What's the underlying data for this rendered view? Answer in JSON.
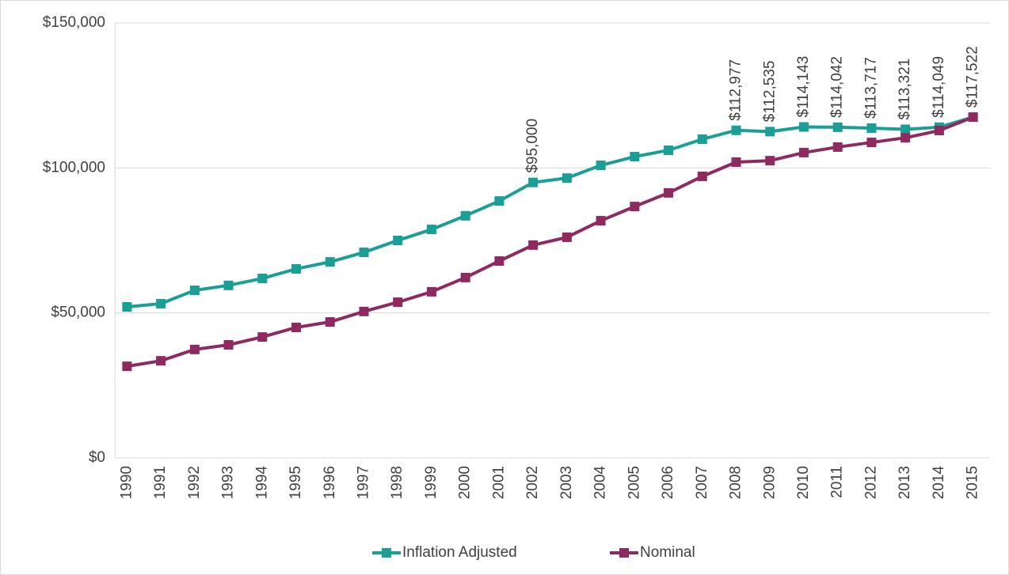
{
  "chart_data": {
    "type": "line",
    "categories": [
      "1990",
      "1991",
      "1992",
      "1993",
      "1994",
      "1995",
      "1996",
      "1997",
      "1998",
      "1999",
      "2000",
      "2001",
      "2002",
      "2003",
      "2004",
      "2005",
      "2006",
      "2007",
      "2008",
      "2009",
      "2010",
      "2011",
      "2012",
      "2013",
      "2014",
      "2015"
    ],
    "series": [
      {
        "name": "Inflation Adjusted",
        "color": "#1a9e96",
        "values": [
          52100,
          53200,
          57800,
          59500,
          61900,
          65200,
          67600,
          70900,
          75000,
          78800,
          83500,
          88600,
          95000,
          96500,
          100900,
          103900,
          106100,
          109900,
          112977,
          112535,
          114143,
          114042,
          113717,
          113321,
          114049,
          117522
        ],
        "value_labels": [
          null,
          null,
          null,
          null,
          null,
          null,
          null,
          null,
          null,
          null,
          null,
          null,
          "$95,000",
          null,
          null,
          null,
          null,
          null,
          "$112,977",
          "$112,535",
          "$114,143",
          "$114,042",
          "$113,717",
          "$113,321",
          "$114,049",
          "$117,522"
        ]
      },
      {
        "name": "Nominal",
        "color": "#8e2a5f",
        "values": [
          31600,
          33500,
          37400,
          39000,
          41700,
          45000,
          46900,
          50500,
          53700,
          57300,
          62200,
          67900,
          73400,
          76100,
          81800,
          86700,
          91400,
          97100,
          102000,
          102500,
          105300,
          107200,
          108800,
          110400,
          112900,
          117522
        ]
      }
    ],
    "ylim": [
      0,
      150000
    ],
    "yticks": [
      {
        "value": 0,
        "label": "$0"
      },
      {
        "value": 50000,
        "label": "$50,000"
      },
      {
        "value": 100000,
        "label": "$100,000"
      },
      {
        "value": 150000,
        "label": "$150,000"
      }
    ],
    "grid": true,
    "legend": "bottom"
  }
}
